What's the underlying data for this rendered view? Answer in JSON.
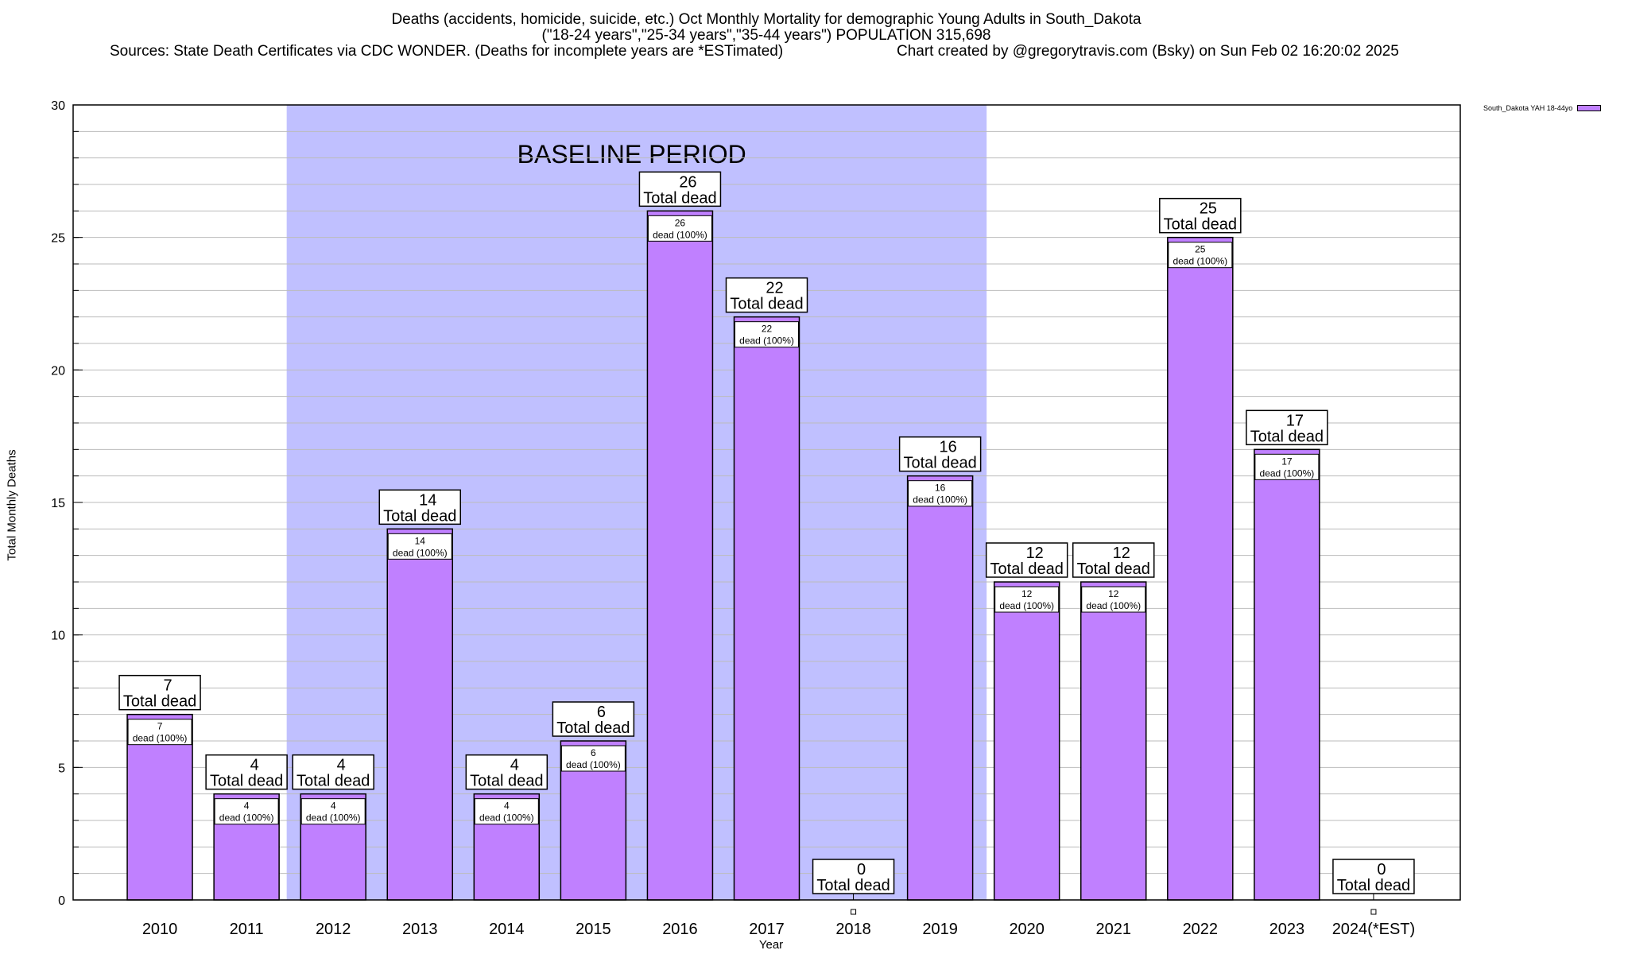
{
  "header": {
    "title_line1": "Deaths (accidents, homicide, suicide, etc.) Oct Monthly Mortality for demographic Young Adults in South_Dakota",
    "title_line2": "(\"18-24 years\",\"25-34 years\",\"35-44 years\") POPULATION 315,698",
    "sources": "Sources: State Death Certificates via CDC WONDER. (Deaths for incomplete years are *ESTimated)",
    "credit": "Chart created by @gregorytravis.com (Bsky) on Sun Feb 02 16:20:02 2025"
  },
  "chart_data": {
    "type": "bar",
    "title": "Deaths (accidents, homicide, suicide, etc.) Oct Monthly Mortality for demographic Young Adults in South_Dakota",
    "xlabel": "Year",
    "ylabel": "Total Monthly Deaths",
    "ylim": [
      0,
      30
    ],
    "yticks": [
      0,
      5,
      10,
      15,
      20,
      25,
      30
    ],
    "y_minor_step": 1,
    "grid": true,
    "legend_position": "top-right (outside)",
    "categories": [
      "2010",
      "2011",
      "2012",
      "2013",
      "2014",
      "2015",
      "2016",
      "2017",
      "2018",
      "2019",
      "2020",
      "2021",
      "2022",
      "2023",
      "2024(*EST)"
    ],
    "series": [
      {
        "name": "South_Dakota YAH 18-44yo",
        "color": "#c080ff",
        "values": [
          7,
          4,
          4,
          14,
          4,
          6,
          26,
          22,
          0,
          16,
          12,
          12,
          25,
          17,
          0
        ]
      }
    ],
    "bar_inner_label_suffix": "dead (100%)",
    "bar_total_label_suffix": "Total dead",
    "annotations": [
      {
        "text": "BASELINE PERIOD",
        "type": "shaded-region",
        "from": "2012",
        "to": "2019",
        "color": "#c0c0ff"
      }
    ]
  }
}
